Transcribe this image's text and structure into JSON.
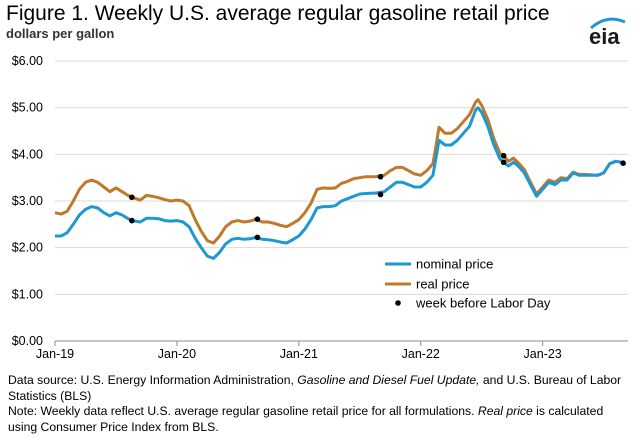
{
  "title": "Figure 1. Weekly U.S. average regular gasoline retail price",
  "subtitle": "dollars per gallon",
  "logo": {
    "text": "eia",
    "icon": "eia-logo-swoosh"
  },
  "notes": {
    "source_prefix": "Data source: U.S. Energy Information Administration, ",
    "source_italic": "Gasoline and Diesel Fuel Update,",
    "source_suffix": " and U.S. Bureau of Labor Statistics (BLS)",
    "note_prefix": "Note: Weekly data reflect U.S. average regular gasoline retail price for all formulations. ",
    "note_italic": "Real price",
    "note_suffix": " is calculated using Consumer Price Index from BLS."
  },
  "colors": {
    "nominal": "#1f98d2",
    "real": "#c0782a",
    "labor_day": "#000000",
    "axis": "#8c8c8c"
  },
  "chart_data": {
    "type": "line",
    "title": "Figure 1. Weekly U.S. average regular gasoline retail price",
    "ylabel": "dollars per gallon",
    "ylim": [
      0,
      6
    ],
    "yticks": [
      "$0.00",
      "$1.00",
      "$2.00",
      "$3.00",
      "$4.00",
      "$5.00",
      "$6.00"
    ],
    "xlim": [
      2019.0,
      2023.7
    ],
    "xticks": [
      {
        "x": 2019.0,
        "label": "Jan-19"
      },
      {
        "x": 2020.0,
        "label": "Jan-20"
      },
      {
        "x": 2021.0,
        "label": "Jan-21"
      },
      {
        "x": 2022.0,
        "label": "Jan-22"
      },
      {
        "x": 2023.0,
        "label": "Jan-23"
      }
    ],
    "legend_position": "bottom-right",
    "series": [
      {
        "name": "nominal price",
        "color": "#1f98d2",
        "points": [
          [
            2019.0,
            2.25
          ],
          [
            2019.05,
            2.25
          ],
          [
            2019.1,
            2.32
          ],
          [
            2019.15,
            2.5
          ],
          [
            2019.2,
            2.7
          ],
          [
            2019.25,
            2.82
          ],
          [
            2019.3,
            2.88
          ],
          [
            2019.35,
            2.85
          ],
          [
            2019.4,
            2.75
          ],
          [
            2019.45,
            2.68
          ],
          [
            2019.5,
            2.75
          ],
          [
            2019.55,
            2.7
          ],
          [
            2019.6,
            2.62
          ],
          [
            2019.63,
            2.58
          ],
          [
            2019.7,
            2.55
          ],
          [
            2019.75,
            2.63
          ],
          [
            2019.8,
            2.63
          ],
          [
            2019.85,
            2.62
          ],
          [
            2019.9,
            2.58
          ],
          [
            2019.95,
            2.57
          ],
          [
            2020.0,
            2.58
          ],
          [
            2020.05,
            2.55
          ],
          [
            2020.1,
            2.45
          ],
          [
            2020.15,
            2.2
          ],
          [
            2020.2,
            2.0
          ],
          [
            2020.25,
            1.82
          ],
          [
            2020.3,
            1.77
          ],
          [
            2020.35,
            1.9
          ],
          [
            2020.4,
            2.08
          ],
          [
            2020.45,
            2.18
          ],
          [
            2020.5,
            2.2
          ],
          [
            2020.55,
            2.18
          ],
          [
            2020.6,
            2.19
          ],
          [
            2020.65,
            2.22
          ],
          [
            2020.7,
            2.18
          ],
          [
            2020.75,
            2.17
          ],
          [
            2020.8,
            2.15
          ],
          [
            2020.85,
            2.12
          ],
          [
            2020.9,
            2.1
          ],
          [
            2020.95,
            2.17
          ],
          [
            2021.0,
            2.25
          ],
          [
            2021.05,
            2.4
          ],
          [
            2021.1,
            2.6
          ],
          [
            2021.15,
            2.85
          ],
          [
            2021.2,
            2.88
          ],
          [
            2021.25,
            2.88
          ],
          [
            2021.3,
            2.9
          ],
          [
            2021.35,
            3.0
          ],
          [
            2021.4,
            3.05
          ],
          [
            2021.45,
            3.1
          ],
          [
            2021.5,
            3.15
          ],
          [
            2021.55,
            3.16
          ],
          [
            2021.6,
            3.17
          ],
          [
            2021.63,
            3.17
          ],
          [
            2021.7,
            3.2
          ],
          [
            2021.75,
            3.3
          ],
          [
            2021.8,
            3.4
          ],
          [
            2021.85,
            3.4
          ],
          [
            2021.9,
            3.35
          ],
          [
            2021.95,
            3.3
          ],
          [
            2022.0,
            3.3
          ],
          [
            2022.05,
            3.4
          ],
          [
            2022.1,
            3.55
          ],
          [
            2022.12,
            3.85
          ],
          [
            2022.15,
            4.3
          ],
          [
            2022.2,
            4.2
          ],
          [
            2022.25,
            4.2
          ],
          [
            2022.3,
            4.3
          ],
          [
            2022.35,
            4.45
          ],
          [
            2022.4,
            4.6
          ],
          [
            2022.45,
            4.95
          ],
          [
            2022.47,
            5.0
          ],
          [
            2022.5,
            4.9
          ],
          [
            2022.55,
            4.6
          ],
          [
            2022.6,
            4.2
          ],
          [
            2022.65,
            3.9
          ],
          [
            2022.68,
            3.83
          ],
          [
            2022.72,
            3.75
          ],
          [
            2022.76,
            3.83
          ],
          [
            2022.8,
            3.75
          ],
          [
            2022.85,
            3.6
          ],
          [
            2022.9,
            3.35
          ],
          [
            2022.95,
            3.1
          ],
          [
            2023.0,
            3.25
          ],
          [
            2023.05,
            3.4
          ],
          [
            2023.1,
            3.35
          ],
          [
            2023.15,
            3.45
          ],
          [
            2023.2,
            3.45
          ],
          [
            2023.25,
            3.6
          ],
          [
            2023.3,
            3.55
          ],
          [
            2023.35,
            3.55
          ],
          [
            2023.4,
            3.55
          ],
          [
            2023.45,
            3.55
          ],
          [
            2023.5,
            3.6
          ],
          [
            2023.55,
            3.8
          ],
          [
            2023.6,
            3.85
          ],
          [
            2023.65,
            3.83
          ]
        ]
      },
      {
        "name": "real price",
        "color": "#c0782a",
        "points": [
          [
            2019.0,
            2.75
          ],
          [
            2019.05,
            2.72
          ],
          [
            2019.1,
            2.78
          ],
          [
            2019.15,
            3.0
          ],
          [
            2019.2,
            3.25
          ],
          [
            2019.25,
            3.4
          ],
          [
            2019.3,
            3.45
          ],
          [
            2019.35,
            3.4
          ],
          [
            2019.4,
            3.3
          ],
          [
            2019.45,
            3.2
          ],
          [
            2019.5,
            3.28
          ],
          [
            2019.55,
            3.2
          ],
          [
            2019.6,
            3.12
          ],
          [
            2019.63,
            3.08
          ],
          [
            2019.7,
            3.02
          ],
          [
            2019.75,
            3.12
          ],
          [
            2019.8,
            3.1
          ],
          [
            2019.85,
            3.07
          ],
          [
            2019.9,
            3.03
          ],
          [
            2019.95,
            3.0
          ],
          [
            2020.0,
            3.02
          ],
          [
            2020.05,
            3.0
          ],
          [
            2020.1,
            2.9
          ],
          [
            2020.15,
            2.6
          ],
          [
            2020.2,
            2.35
          ],
          [
            2020.25,
            2.15
          ],
          [
            2020.3,
            2.1
          ],
          [
            2020.35,
            2.25
          ],
          [
            2020.4,
            2.45
          ],
          [
            2020.45,
            2.55
          ],
          [
            2020.5,
            2.58
          ],
          [
            2020.55,
            2.55
          ],
          [
            2020.6,
            2.57
          ],
          [
            2020.65,
            2.61
          ],
          [
            2020.7,
            2.55
          ],
          [
            2020.75,
            2.55
          ],
          [
            2020.8,
            2.52
          ],
          [
            2020.85,
            2.48
          ],
          [
            2020.9,
            2.45
          ],
          [
            2020.95,
            2.52
          ],
          [
            2021.0,
            2.6
          ],
          [
            2021.05,
            2.75
          ],
          [
            2021.1,
            2.95
          ],
          [
            2021.15,
            3.25
          ],
          [
            2021.2,
            3.28
          ],
          [
            2021.25,
            3.27
          ],
          [
            2021.3,
            3.28
          ],
          [
            2021.35,
            3.38
          ],
          [
            2021.4,
            3.42
          ],
          [
            2021.45,
            3.48
          ],
          [
            2021.5,
            3.5
          ],
          [
            2021.55,
            3.52
          ],
          [
            2021.6,
            3.52
          ],
          [
            2021.63,
            3.52
          ],
          [
            2021.7,
            3.55
          ],
          [
            2021.75,
            3.65
          ],
          [
            2021.8,
            3.72
          ],
          [
            2021.85,
            3.72
          ],
          [
            2021.9,
            3.65
          ],
          [
            2021.95,
            3.58
          ],
          [
            2022.0,
            3.55
          ],
          [
            2022.05,
            3.65
          ],
          [
            2022.1,
            3.8
          ],
          [
            2022.12,
            4.1
          ],
          [
            2022.15,
            4.58
          ],
          [
            2022.2,
            4.45
          ],
          [
            2022.25,
            4.45
          ],
          [
            2022.3,
            4.55
          ],
          [
            2022.35,
            4.7
          ],
          [
            2022.4,
            4.85
          ],
          [
            2022.45,
            5.12
          ],
          [
            2022.47,
            5.17
          ],
          [
            2022.5,
            5.05
          ],
          [
            2022.55,
            4.75
          ],
          [
            2022.6,
            4.33
          ],
          [
            2022.65,
            4.02
          ],
          [
            2022.68,
            3.97
          ],
          [
            2022.72,
            3.85
          ],
          [
            2022.76,
            3.92
          ],
          [
            2022.8,
            3.82
          ],
          [
            2022.85,
            3.67
          ],
          [
            2022.9,
            3.4
          ],
          [
            2022.95,
            3.15
          ],
          [
            2023.0,
            3.3
          ],
          [
            2023.05,
            3.45
          ],
          [
            2023.1,
            3.4
          ],
          [
            2023.15,
            3.5
          ],
          [
            2023.2,
            3.48
          ],
          [
            2023.25,
            3.62
          ],
          [
            2023.3,
            3.57
          ],
          [
            2023.35,
            3.57
          ],
          [
            2023.4,
            3.56
          ],
          [
            2023.45,
            3.55
          ],
          [
            2023.5,
            3.6
          ],
          [
            2023.55,
            3.8
          ],
          [
            2023.6,
            3.85
          ],
          [
            2023.65,
            3.83
          ]
        ]
      },
      {
        "name": "week before Labor Day",
        "color": "#000000",
        "points": [
          [
            2019.63,
            2.58
          ],
          [
            2019.63,
            3.08
          ],
          [
            2020.66,
            2.22
          ],
          [
            2020.66,
            2.61
          ],
          [
            2021.67,
            3.14
          ],
          [
            2021.67,
            3.52
          ],
          [
            2022.68,
            3.83
          ],
          [
            2022.68,
            3.97
          ],
          [
            2023.66,
            3.81
          ]
        ]
      }
    ]
  }
}
